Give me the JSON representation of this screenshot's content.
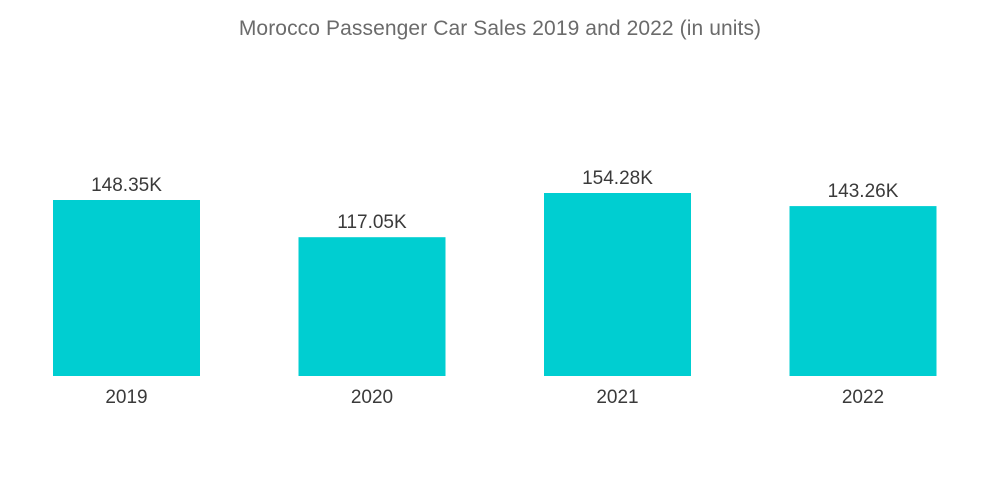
{
  "chart_data": {
    "type": "bar",
    "title": "Morocco Passenger Car Sales  2019 and 2022 (in units)",
    "categories": [
      "2019",
      "2020",
      "2021",
      "2022"
    ],
    "values": [
      148.35,
      117.05,
      154.28,
      143.26
    ],
    "value_labels": [
      "148.35K",
      "117.05K",
      "154.28K",
      "143.26K"
    ],
    "value_unit": "K",
    "xlabel": "",
    "ylabel": "",
    "ylim": [
      0,
      154.28
    ],
    "grid": false,
    "legend": "none",
    "bar_color": "#00CED1"
  }
}
